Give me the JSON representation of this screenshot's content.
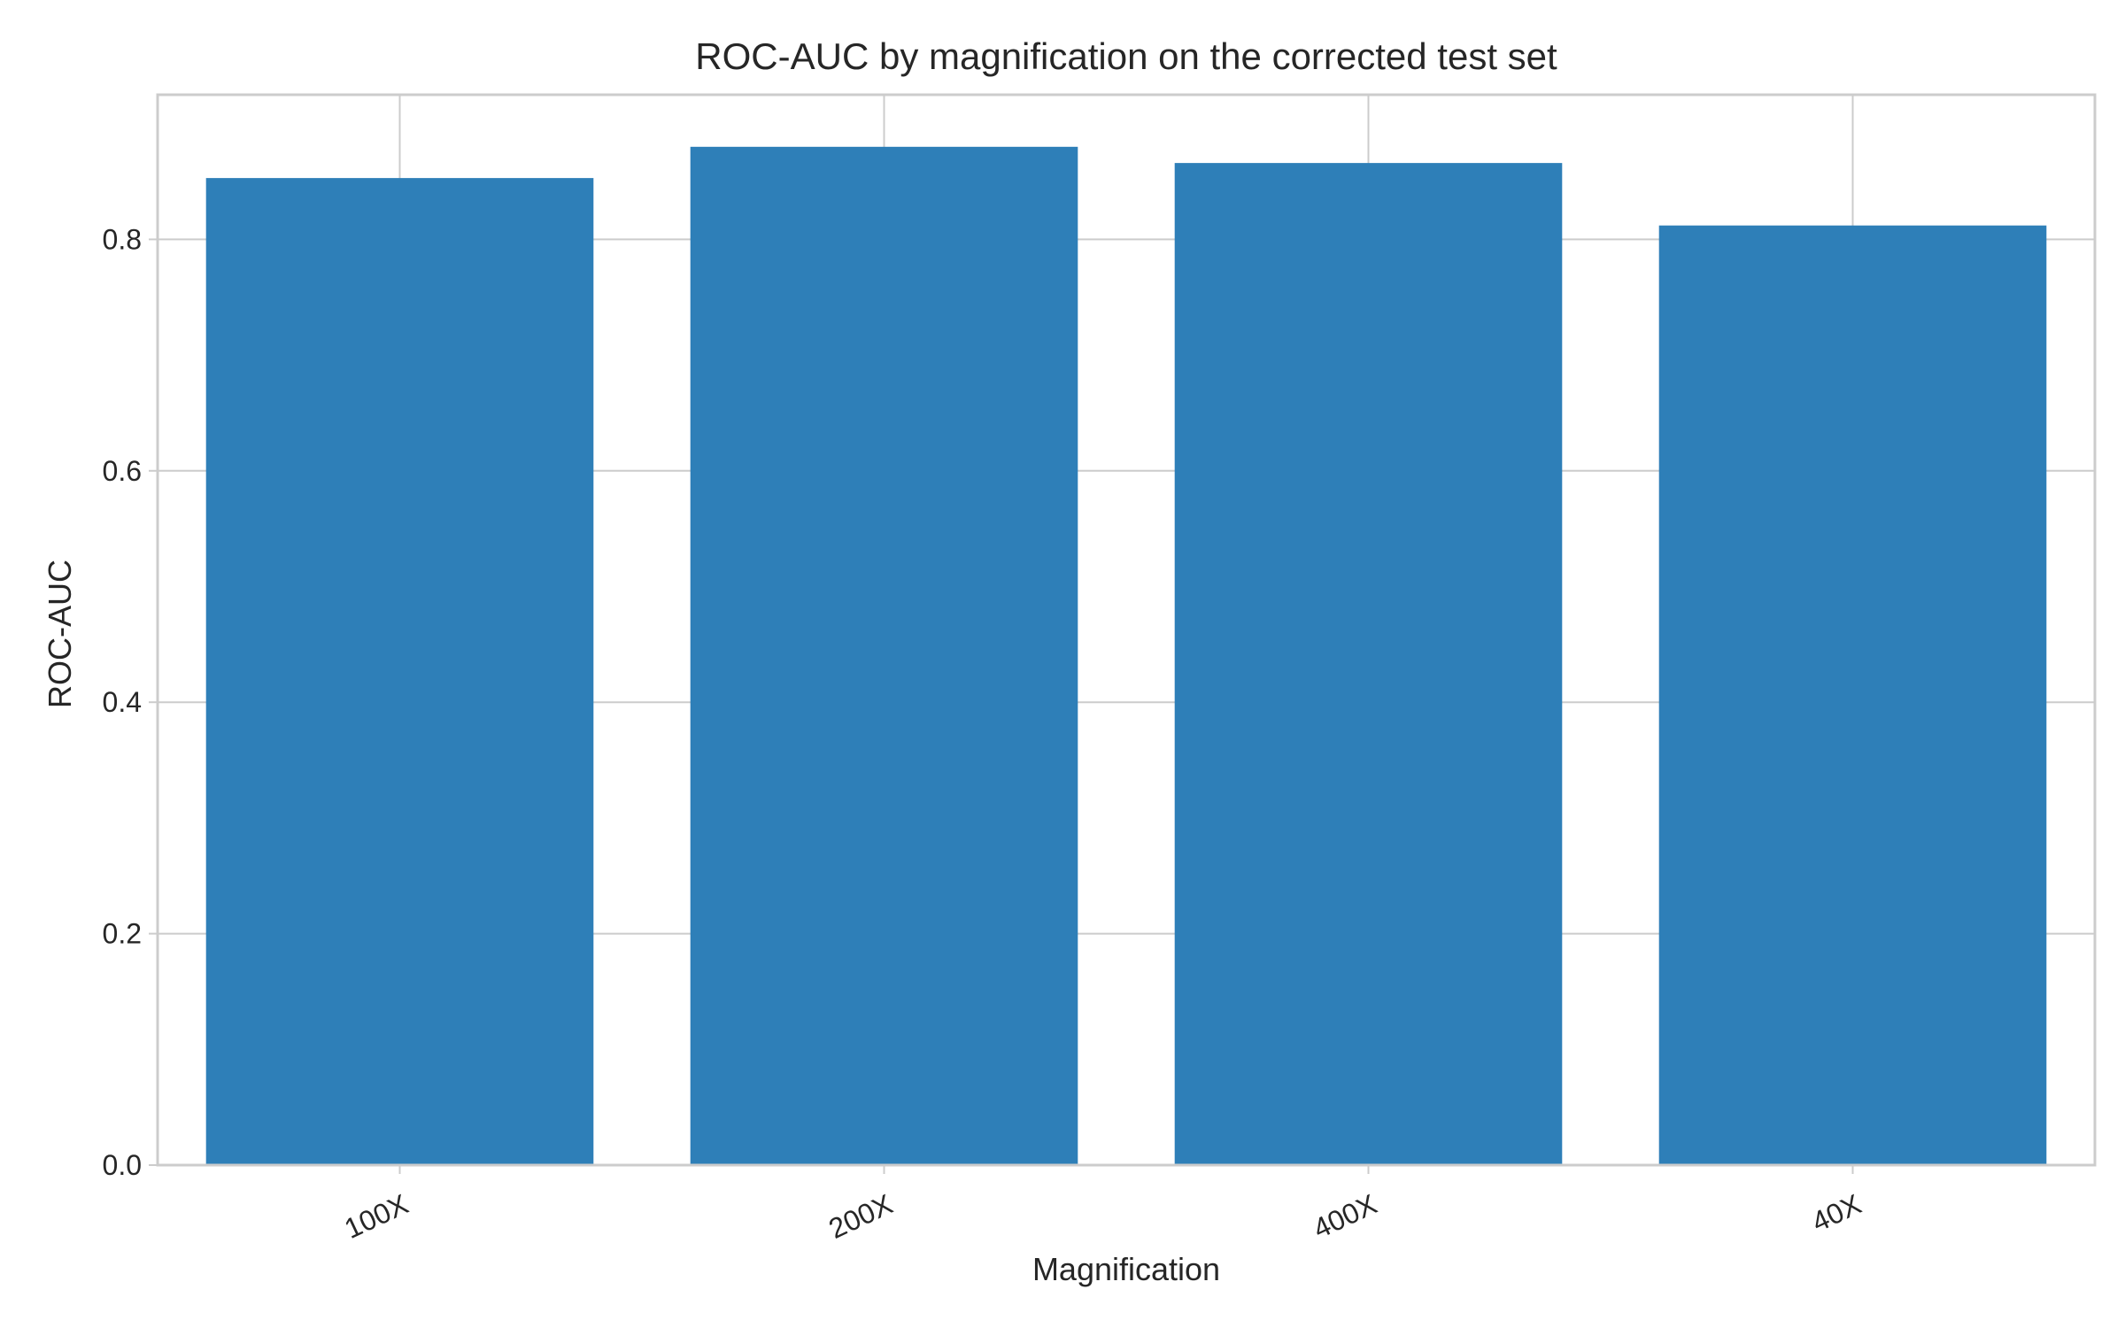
{
  "chart_data": {
    "type": "bar",
    "title": "ROC-AUC by magnification on the corrected test set",
    "xlabel": "Magnification",
    "ylabel": "ROC-AUC",
    "categories": [
      "100X",
      "200X",
      "400X",
      "40X"
    ],
    "values": [
      0.853,
      0.88,
      0.866,
      0.812
    ],
    "ylim": [
      0,
      0.925
    ],
    "yticks": [
      0.0,
      0.2,
      0.4,
      0.6,
      0.8
    ],
    "ytick_labels": [
      "0.0",
      "0.2",
      "0.4",
      "0.6",
      "0.8"
    ],
    "grid": true,
    "x_tick_rotation_deg": -25,
    "bar_color": "#2e7fb8",
    "grid_color": "#cccccc"
  }
}
